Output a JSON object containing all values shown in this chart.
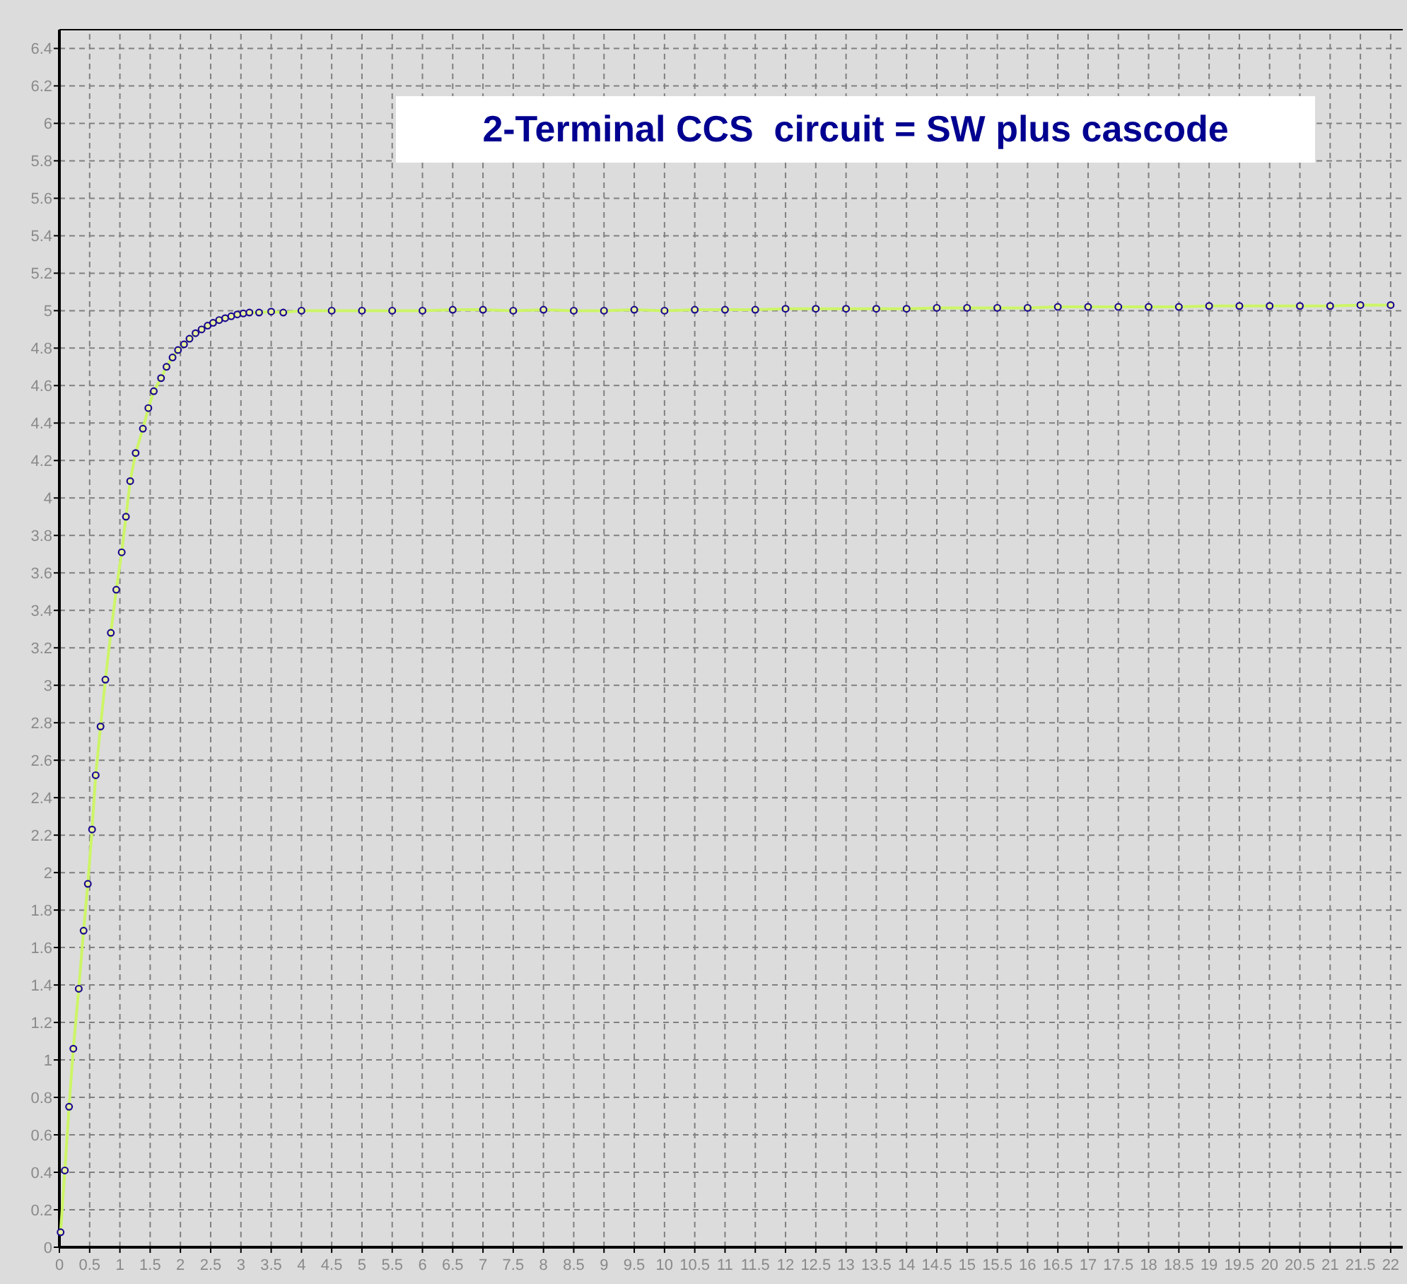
{
  "chart_data": {
    "type": "line",
    "title": "2-Terminal CCS  circuit = SW plus cascode",
    "xlim": [
      0,
      22.2
    ],
    "ylim": [
      0,
      6.5
    ],
    "xticks": [
      0,
      0.5,
      1,
      1.5,
      2,
      2.5,
      3,
      3.5,
      4,
      4.5,
      5,
      5.5,
      6,
      6.5,
      7,
      7.5,
      8,
      8.5,
      9,
      9.5,
      10,
      10.5,
      11,
      11.5,
      12,
      12.5,
      13,
      13.5,
      14,
      14.5,
      15,
      15.5,
      16,
      16.5,
      17,
      17.5,
      18,
      18.5,
      19,
      19.5,
      20,
      20.5,
      21,
      21.5,
      22
    ],
    "yticks": [
      0,
      0.2,
      0.4,
      0.6,
      0.8,
      1,
      1.2,
      1.4,
      1.6,
      1.8,
      2,
      2.2,
      2.4,
      2.6,
      2.8,
      3,
      3.2,
      3.4,
      3.6,
      3.8,
      4,
      4.2,
      4.4,
      4.6,
      4.8,
      5,
      5.2,
      5.4,
      5.6,
      5.8,
      6,
      6.2,
      6.4
    ],
    "grid": true,
    "marker": "circle",
    "line_style": "solid",
    "series": [
      {
        "color": "#ccf566",
        "x": [
          0.02,
          0.09,
          0.16,
          0.23,
          0.32,
          0.4,
          0.47,
          0.54,
          0.6,
          0.68,
          0.76,
          0.85,
          0.94,
          1.03,
          1.1,
          1.17,
          1.26,
          1.38,
          1.47,
          1.56,
          1.68,
          1.77,
          1.87,
          1.96,
          2.06,
          2.15,
          2.25,
          2.35,
          2.45,
          2.54,
          2.64,
          2.74,
          2.84,
          2.94,
          3.04,
          3.14,
          3.3,
          3.5,
          3.7,
          4,
          4.5,
          5,
          5.5,
          6,
          6.5,
          7,
          7.5,
          8,
          8.5,
          9,
          9.5,
          10,
          10.5,
          11,
          11.5,
          12,
          12.5,
          13,
          13.5,
          14,
          14.5,
          15,
          15.5,
          16,
          16.5,
          17,
          17.5,
          18,
          18.5,
          19,
          19.5,
          20,
          20.5,
          21,
          21.5,
          22
        ],
        "values": [
          0.08,
          0.41,
          0.75,
          1.06,
          1.38,
          1.69,
          1.94,
          2.23,
          2.52,
          2.78,
          3.03,
          3.28,
          3.51,
          3.71,
          3.9,
          4.09,
          4.24,
          4.37,
          4.48,
          4.57,
          4.64,
          4.7,
          4.75,
          4.79,
          4.82,
          4.85,
          4.88,
          4.9,
          4.92,
          4.935,
          4.95,
          4.96,
          4.97,
          4.98,
          4.985,
          4.99,
          4.99,
          4.995,
          4.99,
          5.0,
          5.0,
          5.0,
          5.0,
          5.0,
          5.005,
          5.005,
          5.0,
          5.005,
          5.0,
          5.0,
          5.005,
          5.0,
          5.005,
          5.005,
          5.005,
          5.01,
          5.01,
          5.01,
          5.01,
          5.01,
          5.015,
          5.015,
          5.015,
          5.015,
          5.02,
          5.02,
          5.02,
          5.02,
          5.02,
          5.025,
          5.025,
          5.025,
          5.025,
          5.025,
          5.03,
          5.03
        ]
      }
    ]
  }
}
